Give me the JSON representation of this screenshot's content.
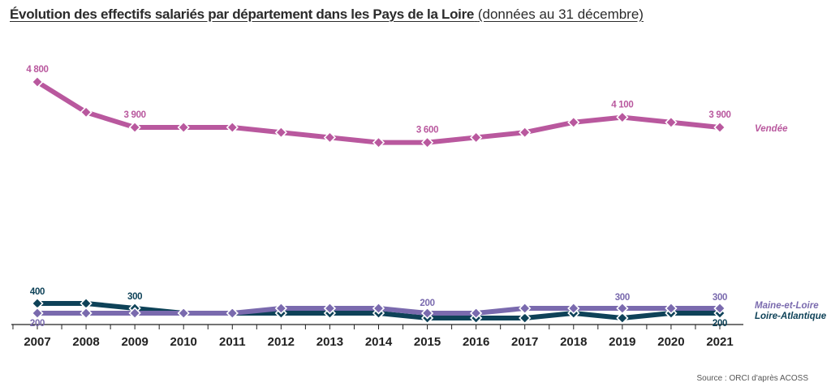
{
  "title": {
    "main": "Évolution des effectifs salariés par département dans les Pays de la Loire",
    "sub": "(données au 31 décembre)"
  },
  "source": "Source : ORCI d'après ACOSS",
  "colors": {
    "vendee": "#B9589E",
    "maine": "#7A6AAE",
    "loire": "#0E4258",
    "axis": "#222222"
  },
  "chart_data": {
    "type": "line",
    "x": [
      "2007",
      "2008",
      "2009",
      "2010",
      "2011",
      "2012",
      "2013",
      "2014",
      "2015",
      "2016",
      "2017",
      "2018",
      "2019",
      "2020",
      "2021"
    ],
    "grid": false,
    "series": [
      {
        "name": "Vendée",
        "color": "#B9589E",
        "values": [
          4800,
          4200,
          3900,
          3900,
          3900,
          3800,
          3700,
          3600,
          3600,
          3700,
          3800,
          4000,
          4100,
          4000,
          3900
        ],
        "labels": [
          {
            "index": 0,
            "text": "4 800"
          },
          {
            "index": 2,
            "text": "3 900"
          },
          {
            "index": 8,
            "text": "3 600"
          },
          {
            "index": 12,
            "text": "4 100"
          },
          {
            "index": 14,
            "text": "3 900"
          }
        ]
      },
      {
        "name": "Maine-et-Loire",
        "color": "#7A6AAE",
        "values": [
          200,
          200,
          200,
          200,
          200,
          300,
          300,
          300,
          200,
          200,
          300,
          300,
          300,
          300,
          300
        ],
        "labels": [
          {
            "index": 0,
            "text": "200"
          },
          {
            "index": 8,
            "text": "200"
          },
          {
            "index": 12,
            "text": "300"
          },
          {
            "index": 14,
            "text": "300"
          }
        ]
      },
      {
        "name": "Loire-Atlantique",
        "color": "#0E4258",
        "values": [
          400,
          400,
          300,
          200,
          200,
          200,
          200,
          200,
          100,
          100,
          100,
          200,
          100,
          200,
          200
        ],
        "labels": [
          {
            "index": 0,
            "text": "400"
          },
          {
            "index": 2,
            "text": "300"
          },
          {
            "index": 14,
            "text": "200"
          }
        ]
      }
    ]
  }
}
